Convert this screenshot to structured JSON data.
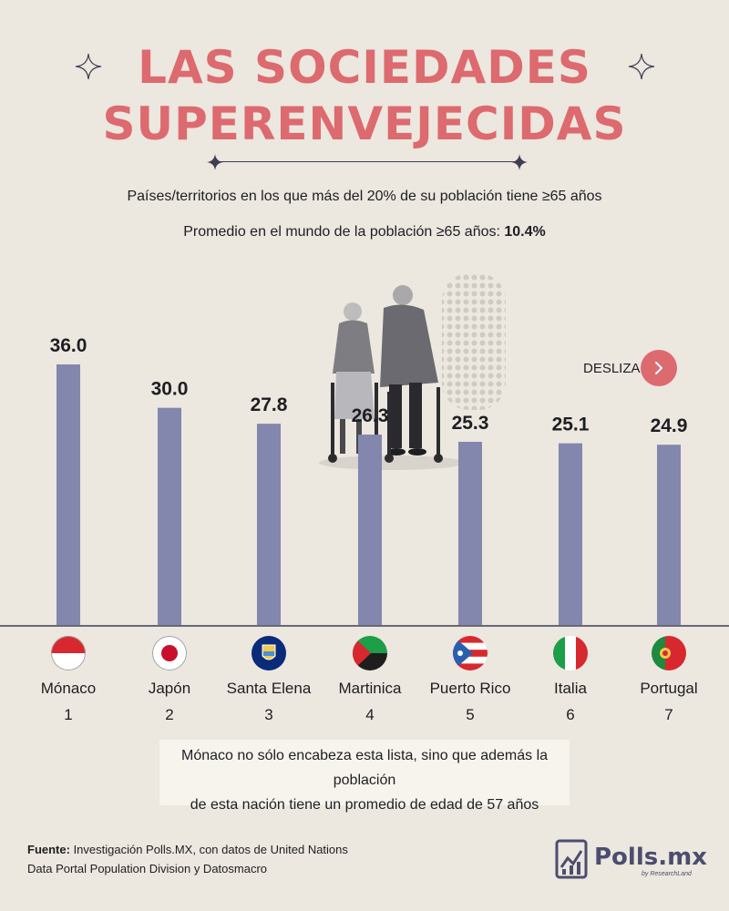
{
  "header": {
    "title_line1": "LAS SOCIEDADES",
    "title_line2": "SUPERENVEJECIDAS",
    "subtitle1": "Países/territorios en los que más del 20% de su población tiene ≥65 años",
    "subtitle2_prefix": "Promedio en el mundo de la población ≥65 años: ",
    "subtitle2_value": "10.4%"
  },
  "desliza": {
    "label": "DESLIZA"
  },
  "colors": {
    "accent": "#dc6a6f",
    "bar": "#8387ad",
    "text": "#1e1e22",
    "background": "#ece7df"
  },
  "chart_data": {
    "type": "bar",
    "categories": [
      "Mónaco",
      "Japón",
      "Santa Elena",
      "Martinica",
      "Puerto Rico",
      "Italia",
      "Portugal"
    ],
    "ranks": [
      "1",
      "2",
      "3",
      "4",
      "5",
      "6",
      "7"
    ],
    "values": [
      36.0,
      30.0,
      27.8,
      26.3,
      25.3,
      25.1,
      24.9
    ],
    "value_labels": [
      "36.0",
      "30.0",
      "27.8",
      "26.3",
      "25.3",
      "25.1",
      "24.9"
    ],
    "flags": [
      "monaco-flag",
      "japan-flag",
      "saint-helena-flag",
      "martinique-flag",
      "puerto-rico-flag",
      "italy-flag",
      "portugal-flag"
    ],
    "ylim": [
      0,
      36.0
    ],
    "title": "",
    "xlabel": "",
    "ylabel": "",
    "grid": false
  },
  "note": {
    "line1": "Mónaco no sólo encabeza esta lista, sino que además la población",
    "line2": "de esta nación tiene un promedio de edad de 57 años"
  },
  "source": {
    "label": "Fuente:",
    "line1": " Investigación Polls.MX, con datos de United Nations",
    "line2": "Data Portal Population Division y Datosmacro"
  },
  "logo": {
    "name": "Polls.mx",
    "tagline": "by ResearchLand"
  }
}
